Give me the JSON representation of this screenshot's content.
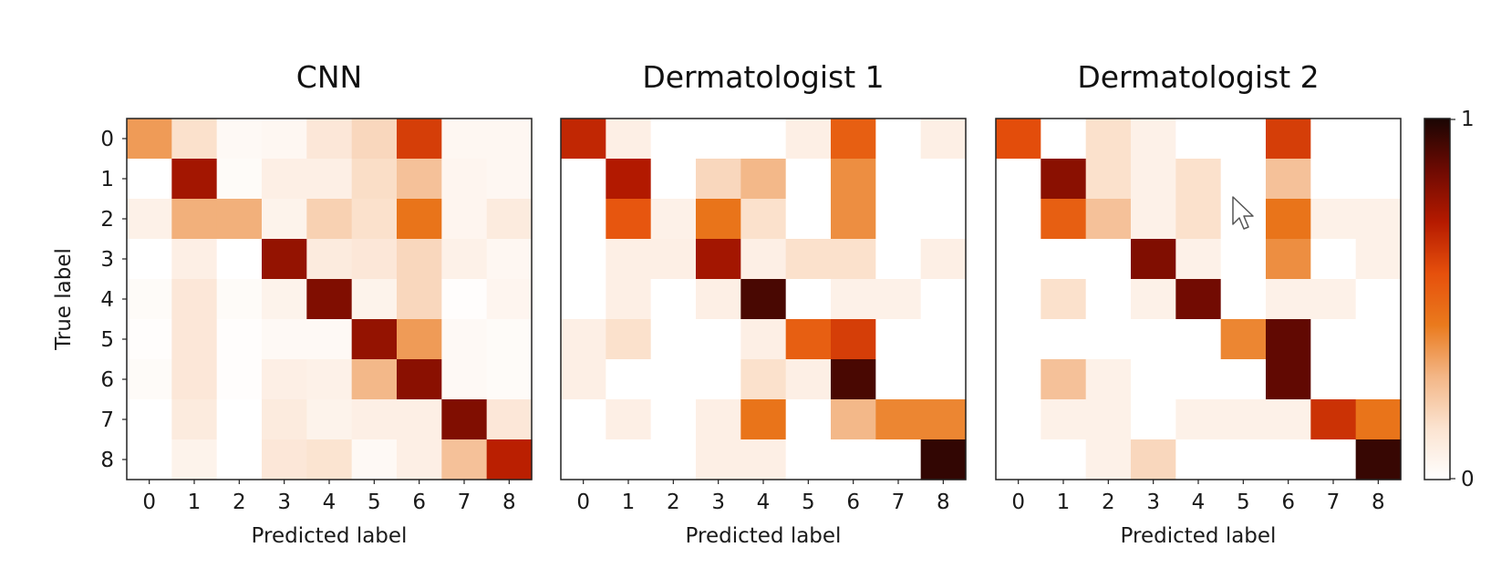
{
  "chart_data": [
    {
      "type": "heatmap",
      "title": "CNN",
      "xlabel": "Predicted label",
      "ylabel": "True label",
      "x_tick_labels": [
        "0",
        "1",
        "2",
        "3",
        "4",
        "5",
        "6",
        "7",
        "8"
      ],
      "y_tick_labels": [
        "0",
        "1",
        "2",
        "3",
        "4",
        "5",
        "6",
        "7",
        "8"
      ],
      "value_range": [
        0,
        1
      ],
      "matrix": [
        [
          0.35,
          0.15,
          0.03,
          0.04,
          0.12,
          0.18,
          0.62,
          0.04,
          0.04
        ],
        [
          0.0,
          0.75,
          0.02,
          0.08,
          0.08,
          0.16,
          0.25,
          0.05,
          0.04
        ],
        [
          0.07,
          0.3,
          0.3,
          0.06,
          0.2,
          0.15,
          0.45,
          0.05,
          0.1
        ],
        [
          0.0,
          0.08,
          0.0,
          0.78,
          0.1,
          0.12,
          0.18,
          0.07,
          0.04
        ],
        [
          0.02,
          0.12,
          0.02,
          0.06,
          0.82,
          0.06,
          0.18,
          0.01,
          0.05
        ],
        [
          0.01,
          0.12,
          0.01,
          0.03,
          0.03,
          0.78,
          0.35,
          0.03,
          0.02
        ],
        [
          0.02,
          0.12,
          0.01,
          0.08,
          0.07,
          0.28,
          0.8,
          0.03,
          0.02
        ],
        [
          0.0,
          0.1,
          0.0,
          0.1,
          0.06,
          0.08,
          0.08,
          0.82,
          0.12
        ],
        [
          0.0,
          0.06,
          0.0,
          0.12,
          0.14,
          0.03,
          0.08,
          0.25,
          0.7
        ]
      ]
    },
    {
      "type": "heatmap",
      "title": "Dermatologist 1",
      "xlabel": "Predicted label",
      "ylabel": "",
      "x_tick_labels": [
        "0",
        "1",
        "2",
        "3",
        "4",
        "5",
        "6",
        "7",
        "8"
      ],
      "y_tick_labels": [],
      "value_range": [
        0,
        1
      ],
      "matrix": [
        [
          0.68,
          0.08,
          0.0,
          0.0,
          0.0,
          0.08,
          0.52,
          0.0,
          0.08
        ],
        [
          0.0,
          0.72,
          0.0,
          0.18,
          0.28,
          0.0,
          0.38,
          0.0,
          0.0
        ],
        [
          0.0,
          0.55,
          0.07,
          0.45,
          0.15,
          0.0,
          0.38,
          0.0,
          0.0
        ],
        [
          0.0,
          0.08,
          0.08,
          0.75,
          0.08,
          0.15,
          0.15,
          0.0,
          0.08
        ],
        [
          0.0,
          0.08,
          0.0,
          0.08,
          0.92,
          0.0,
          0.07,
          0.07,
          0.0
        ],
        [
          0.08,
          0.15,
          0.0,
          0.0,
          0.08,
          0.52,
          0.62,
          0.0,
          0.0
        ],
        [
          0.08,
          0.0,
          0.0,
          0.0,
          0.15,
          0.08,
          0.92,
          0.0,
          0.0
        ],
        [
          0.0,
          0.08,
          0.0,
          0.08,
          0.45,
          0.0,
          0.28,
          0.4,
          0.4
        ],
        [
          0.0,
          0.0,
          0.0,
          0.08,
          0.08,
          0.0,
          0.0,
          0.0,
          0.96
        ]
      ]
    },
    {
      "type": "heatmap",
      "title": "Dermatologist 2",
      "xlabel": "Predicted label",
      "ylabel": "",
      "x_tick_labels": [
        "0",
        "1",
        "2",
        "3",
        "4",
        "5",
        "6",
        "7",
        "8"
      ],
      "y_tick_labels": [],
      "value_range": [
        0,
        1
      ],
      "matrix": [
        [
          0.58,
          0.0,
          0.15,
          0.07,
          0.0,
          0.0,
          0.62,
          0.0,
          0.0
        ],
        [
          0.0,
          0.8,
          0.15,
          0.07,
          0.15,
          0.0,
          0.25,
          0.0,
          0.0
        ],
        [
          0.0,
          0.52,
          0.25,
          0.07,
          0.15,
          0.0,
          0.45,
          0.07,
          0.07
        ],
        [
          0.0,
          0.0,
          0.0,
          0.82,
          0.07,
          0.0,
          0.38,
          0.0,
          0.07
        ],
        [
          0.0,
          0.15,
          0.0,
          0.07,
          0.85,
          0.0,
          0.07,
          0.07,
          0.0
        ],
        [
          0.0,
          0.0,
          0.0,
          0.0,
          0.0,
          0.4,
          0.88,
          0.0,
          0.0
        ],
        [
          0.0,
          0.25,
          0.07,
          0.0,
          0.0,
          0.0,
          0.88,
          0.0,
          0.0
        ],
        [
          0.0,
          0.07,
          0.07,
          0.0,
          0.07,
          0.07,
          0.07,
          0.65,
          0.45
        ],
        [
          0.0,
          0.0,
          0.07,
          0.18,
          0.0,
          0.0,
          0.0,
          0.0,
          0.95
        ]
      ]
    }
  ],
  "colorbar": {
    "colormap": "Oranges-to-black",
    "stops": [
      "#ffffff",
      "#fbe3d0",
      "#f3b686",
      "#ea7a1d",
      "#e6500c",
      "#b51a00",
      "#6e0a02",
      "#1a0503"
    ],
    "range": [
      0,
      1
    ],
    "tick_labels": [
      "0",
      "1"
    ]
  }
}
